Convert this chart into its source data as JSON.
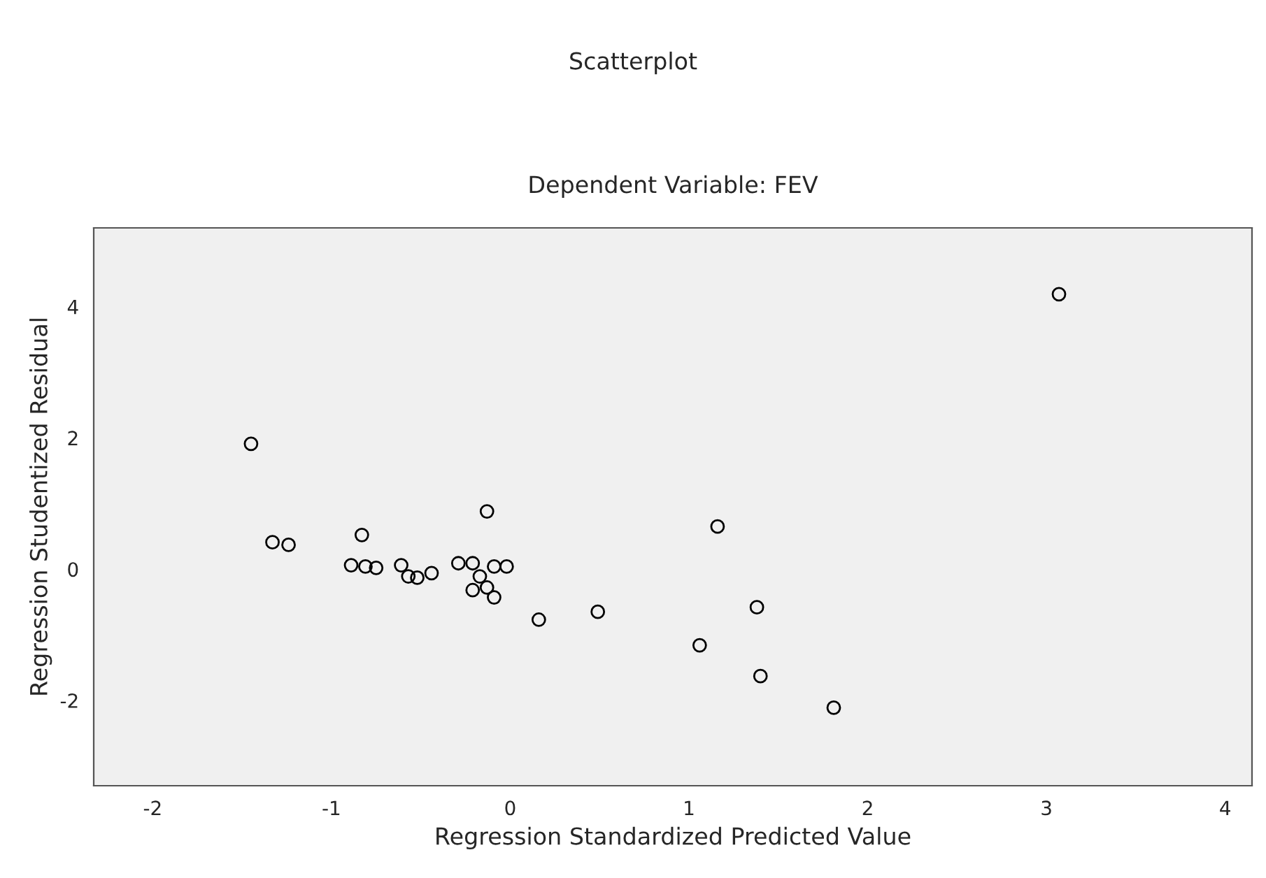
{
  "chart_data": {
    "type": "scatter",
    "title": "Scatterplot",
    "subtitle": "Dependent Variable: FEV",
    "xlabel": "Regression Standardized Predicted Value",
    "ylabel": "Regression Studentized Residual",
    "series": [
      {
        "color": "#000000",
        "x": [
          3.07,
          -1.45,
          -1.33,
          -1.24,
          -0.83,
          -0.89,
          -0.81,
          -0.75,
          -0.61,
          -0.57,
          -0.52,
          -0.44,
          -0.13,
          -0.29,
          -0.21,
          -0.09,
          -0.02,
          -0.17,
          -0.13,
          -0.09,
          -0.21,
          0.16,
          0.49,
          1.16,
          1.06,
          1.38,
          1.4,
          1.81
        ],
        "values": [
          4.19,
          1.91,
          0.41,
          0.37,
          0.52,
          0.06,
          0.04,
          0.02,
          0.06,
          -0.11,
          -0.13,
          -0.06,
          0.88,
          0.09,
          0.09,
          0.04,
          0.04,
          -0.11,
          -0.28,
          -0.43,
          -0.32,
          -0.77,
          -0.65,
          0.65,
          -1.16,
          -0.58,
          -1.63,
          -2.11
        ]
      }
    ],
    "xlim": [
      -2.33,
      4.15
    ],
    "ylim": [
      -3.3,
      5.2
    ],
    "xticks": [
      -2,
      -1,
      0,
      1,
      2,
      3,
      4
    ],
    "yticks": [
      -2,
      0,
      2,
      4
    ],
    "marker": "circle",
    "grid": false,
    "legend": false
  }
}
